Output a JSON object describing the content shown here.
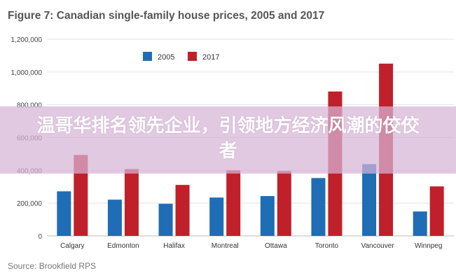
{
  "chart_data": {
    "type": "bar",
    "title": "Figure 7: Canadian single-family house prices, 2005 and 2017",
    "source": "Source: Brookfield RPS",
    "categories": [
      "Calgary",
      "Edmonton",
      "Halifax",
      "Montreal",
      "Ottawa",
      "Toronto",
      "Vancouver",
      "Winnpeg"
    ],
    "series": [
      {
        "name": "2005",
        "color": "#1f6db5",
        "values": [
          272000,
          221000,
          196000,
          234000,
          243000,
          353000,
          438000,
          149000
        ]
      },
      {
        "name": "2017",
        "color": "#c0202a",
        "values": [
          494000,
          408000,
          311000,
          400000,
          396000,
          881000,
          1051000,
          302000
        ]
      }
    ],
    "ylim": [
      0,
      1200000
    ],
    "yticks": [
      "0",
      "200,000",
      "400,000",
      "600,000",
      "800,000",
      "1,000,000",
      "1,200,000"
    ],
    "grid": true,
    "legend": "top-center"
  },
  "overlay": {
    "banner_text": "温哥华排名领先企业，引领地方经济风潮的佼佼者"
  }
}
